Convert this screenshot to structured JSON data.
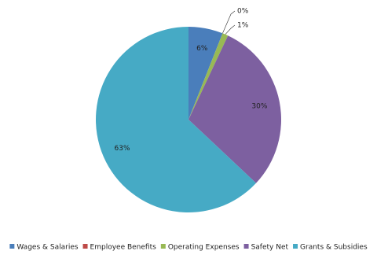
{
  "chart_data": {
    "type": "pie",
    "categories": [
      "Wages & Salaries",
      "Employee Benefits",
      "Operating Expenses",
      "Safety Net",
      "Grants & Subsidies"
    ],
    "values": [
      6,
      0,
      1,
      30,
      63
    ],
    "value_labels": [
      "6%",
      "0%",
      "1%",
      "30%",
      "63%"
    ],
    "colors": [
      "#4a7ebb",
      "#be4b48",
      "#98b954",
      "#7d60a0",
      "#46aac5"
    ],
    "legend": "bottom"
  }
}
